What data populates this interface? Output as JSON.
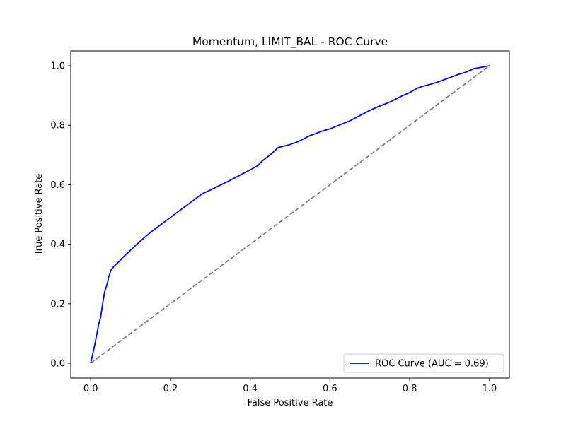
{
  "chart_data": {
    "type": "line",
    "title": "Momentum, LIMIT_BAL - ROC Curve",
    "xlabel": "False Positive Rate",
    "ylabel": "True Positive Rate",
    "xlim": [
      -0.05,
      1.05
    ],
    "ylim": [
      -0.05,
      1.05
    ],
    "xticks": [
      0.0,
      0.2,
      0.4,
      0.6,
      0.8,
      1.0
    ],
    "yticks": [
      0.0,
      0.2,
      0.4,
      0.6,
      0.8,
      1.0
    ],
    "xtick_labels": [
      "0.0",
      "0.2",
      "0.4",
      "0.6",
      "0.8",
      "1.0"
    ],
    "ytick_labels": [
      "0.0",
      "0.2",
      "0.4",
      "0.6",
      "0.8",
      "1.0"
    ],
    "grid": false,
    "legend_position": "lower-right",
    "series": [
      {
        "name": "ROC Curve (AUC = 0.69)",
        "color": "#0000ff",
        "style": "solid",
        "x": [
          0.0,
          0.005,
          0.01,
          0.015,
          0.02,
          0.025,
          0.03,
          0.035,
          0.04,
          0.043,
          0.045,
          0.048,
          0.05,
          0.052,
          0.055,
          0.06,
          0.07,
          0.08,
          0.1,
          0.12,
          0.15,
          0.2,
          0.25,
          0.28,
          0.3,
          0.35,
          0.4,
          0.42,
          0.43,
          0.45,
          0.47,
          0.5,
          0.52,
          0.55,
          0.58,
          0.6,
          0.65,
          0.7,
          0.72,
          0.75,
          0.78,
          0.8,
          0.82,
          0.83,
          0.85,
          0.87,
          0.9,
          0.92,
          0.94,
          0.96,
          0.98,
          1.0
        ],
        "y": [
          0.0,
          0.03,
          0.06,
          0.095,
          0.13,
          0.155,
          0.2,
          0.24,
          0.26,
          0.275,
          0.29,
          0.3,
          0.31,
          0.315,
          0.32,
          0.328,
          0.34,
          0.355,
          0.38,
          0.405,
          0.44,
          0.49,
          0.54,
          0.57,
          0.582,
          0.615,
          0.65,
          0.665,
          0.68,
          0.7,
          0.725,
          0.735,
          0.745,
          0.765,
          0.78,
          0.788,
          0.815,
          0.85,
          0.862,
          0.878,
          0.898,
          0.91,
          0.925,
          0.93,
          0.937,
          0.945,
          0.96,
          0.97,
          0.978,
          0.99,
          0.995,
          1.0
        ]
      },
      {
        "name": "",
        "color": "#808080",
        "style": "dashed",
        "x": [
          0.0,
          1.0
        ],
        "y": [
          0.0,
          1.0
        ]
      }
    ]
  }
}
